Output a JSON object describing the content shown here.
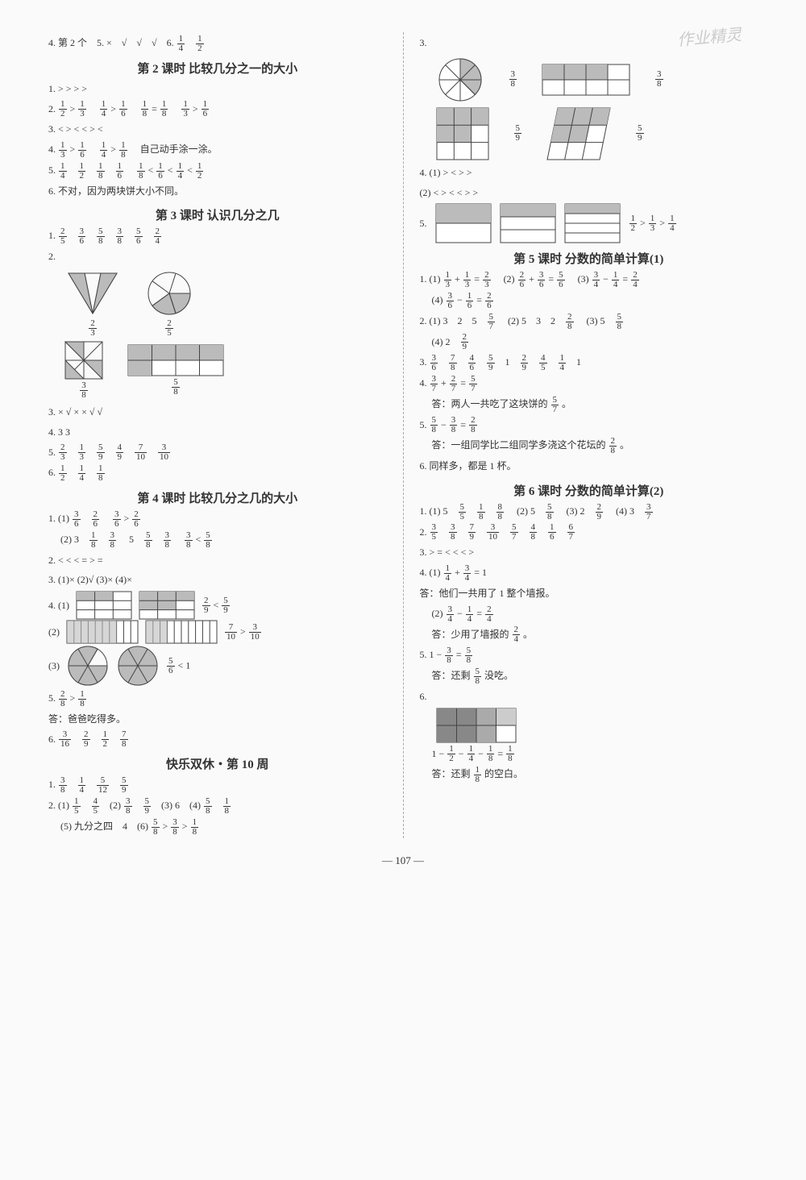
{
  "watermark": "作业精灵",
  "pageno": "— 107 —",
  "colors": {
    "text": "#333333",
    "rule": "#444444",
    "shade": "#bbbbbb",
    "bg": "#fafafa"
  },
  "left": {
    "l4": "4. 第 2 个  5. ×  √  √  √  6. 1/4  1/2",
    "s2_title": "第 2 课时  比较几分之一的大小",
    "s2_1": "1. >  >  >  >",
    "s2_2": "2. 1/2 > 1/3   1/4 > 1/6   1/8 = 1/8   1/3 > 1/6",
    "s2_3": "3. <  >  <  <  >  <",
    "s2_4": "4. 1/3 > 1/6   1/4 > 1/8   自己动手涂一涂。",
    "s2_5": "5. 1/4  1/2  1/8  1/6   1/8 < 1/6 < 1/4 < 1/2",
    "s2_6": "6. 不对，因为两块饼大小不同。",
    "s3_title": "第 3 课时  认识几分之几",
    "s3_1": "1. 2/5  3/6  5/8  3/8  5/6  2/4",
    "s3_2": "2.",
    "s3_2a_lbl": "2/3",
    "s3_2b_lbl": "2/5",
    "s3_2c_lbl": "3/8",
    "s3_2d_lbl": "5/8",
    "s3_3": "3. ×  √  ×  ×  √  √",
    "s3_4": "4. 3  3",
    "s3_5": "5. 2/3  1/3  5/9  4/9  7/10  3/10",
    "s3_6": "6. 1/2  1/4  1/8",
    "s4_title": "第 4 课时  比较几分之几的大小",
    "s4_1a": "1. (1) 3/6  2/6   3/6 > 2/6",
    "s4_1b": "   (2) 3  1/8  3/8   5  5/8  3/8   3/8 < 5/8",
    "s4_2": "2. <  <  <  =  >  =",
    "s4_3": "3. (1)×  (2)√  (3)×  (4)×",
    "s4_4": "4. (1)",
    "s4_4a_r": "2/9 < 5/9",
    "s4_4b": "   (2)",
    "s4_4b_r": "7/10 > 3/10",
    "s4_4c": "   (3)",
    "s4_4c_r": "5/6 < 1",
    "s4_5": "5. 2/8 > 1/8",
    "s4_5b": "   答：爸爸吃得多。",
    "s4_6": "6. 3/16  2/9  1/2  7/8",
    "sw_title": "快乐双休・第 10 周",
    "sw_1": "1. 3/8  1/4  5/12  5/9",
    "sw_2": "2. (1) 1/5  4/5  (2) 3/8  5/9  (3) 6  (4) 5/8  1/8",
    "sw_3": "   (5) 九分之四  4  (6) 5/8 > 3/8 > 1/8"
  },
  "right": {
    "r3": "3.",
    "r3a_lbl": "3/8",
    "r3b_lbl": "3/8",
    "r3c_lbl": "5/9",
    "r3d_lbl": "5/9",
    "r4a": "4. (1) >  <  >  >",
    "r4b": "   (2) <  >  <  <  >  >",
    "r5": "5.",
    "r5_r": "1/2 > 1/3 > 1/4",
    "s5_title": "第 5 课时  分数的简单计算(1)",
    "s5_1": "1. (1) 1/3 + 1/3 = 2/3   (2) 2/6 + 3/6 = 5/6   (3) 3/4 − 1/4 = 2/4",
    "s5_1b": "   (4) 3/6 − 1/6 = 2/6",
    "s5_2": "2. (1) 3  2  5  5/7   (2) 5  3  2  2/8   (3) 5  5/8",
    "s5_2b": "   (4) 2  2/9",
    "s5_3": "3. 3/6  7/8  4/6  5/9  1  2/9  4/5  1/4  1",
    "s5_4": "4. 3/7 + 2/7 = 5/7",
    "s5_4b": "   答：两人一共吃了这块饼的 5/7 。",
    "s5_5": "5. 5/8 − 3/8 = 2/8",
    "s5_5b": "   答：一组同学比二组同学多浇这个花坛的 2/8 。",
    "s5_6": "6. 同样多，都是 1 杯。",
    "s6_title": "第 6 课时  分数的简单计算(2)",
    "s6_1": "1. (1) 5  5/5  1/8  8/8   (2) 5  5/8   (3) 2  2/9   (4) 3  3/7",
    "s6_2": "2. 3/5  3/8  7/9  3/10  5/7  4/8  1/6  6/7",
    "s6_3": "3. >  =  <  <  <  >",
    "s6_4a": "4. (1) 1/4 + 3/4 = 1",
    "s6_4a2": "   答：他们一共用了 1 整个墙报。",
    "s6_4b": "   (2) 3/4 − 1/4 = 2/4",
    "s6_4b2": "   答：少用了墙报的 2/4 。",
    "s6_5": "5. 1 − 3/8 = 5/8",
    "s6_5b": "   答：还剩 5/8 没吃。",
    "s6_6": "6.",
    "s6_6b": "   1 − 1/2 − 1/4 − 1/8 = 1/8",
    "s6_6c": "   答：还剩 1/8 的空白。"
  }
}
